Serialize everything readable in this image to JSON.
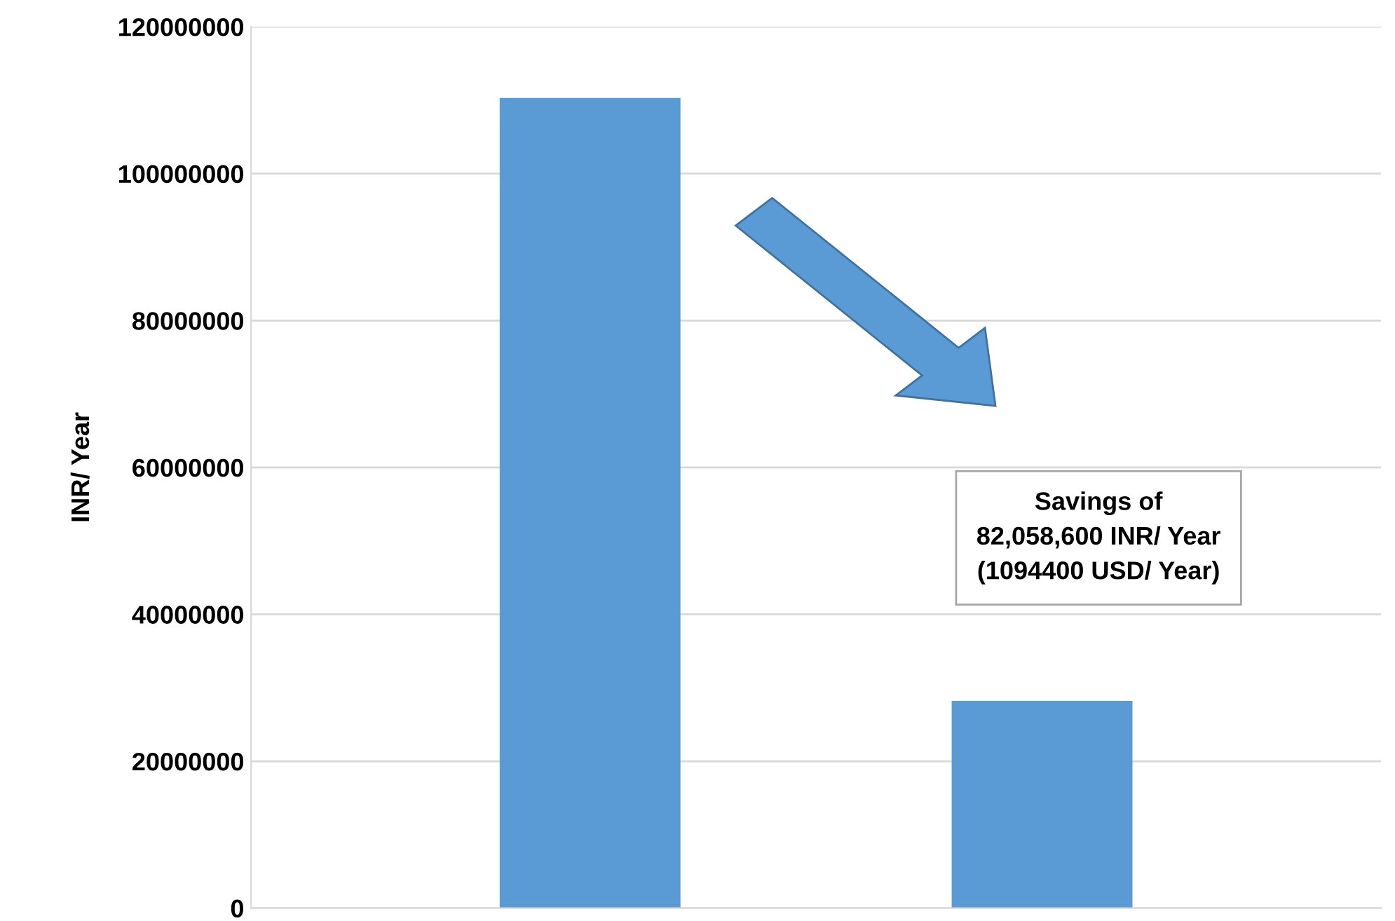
{
  "chart_data": {
    "type": "bar",
    "ylabel": "INR/ Year",
    "categories": [
      null,
      null
    ],
    "values": [
      110300000,
      28200000
    ],
    "color": "#5b9bd5",
    "ylim": [
      0,
      120000000
    ],
    "yticks": [
      0,
      20000000,
      40000000,
      60000000,
      80000000,
      100000000,
      120000000
    ],
    "grid": "y",
    "annotations": [
      "Savings of\n82,058,600 INR/ Year\n(1094400 USD/ Year)"
    ]
  }
}
